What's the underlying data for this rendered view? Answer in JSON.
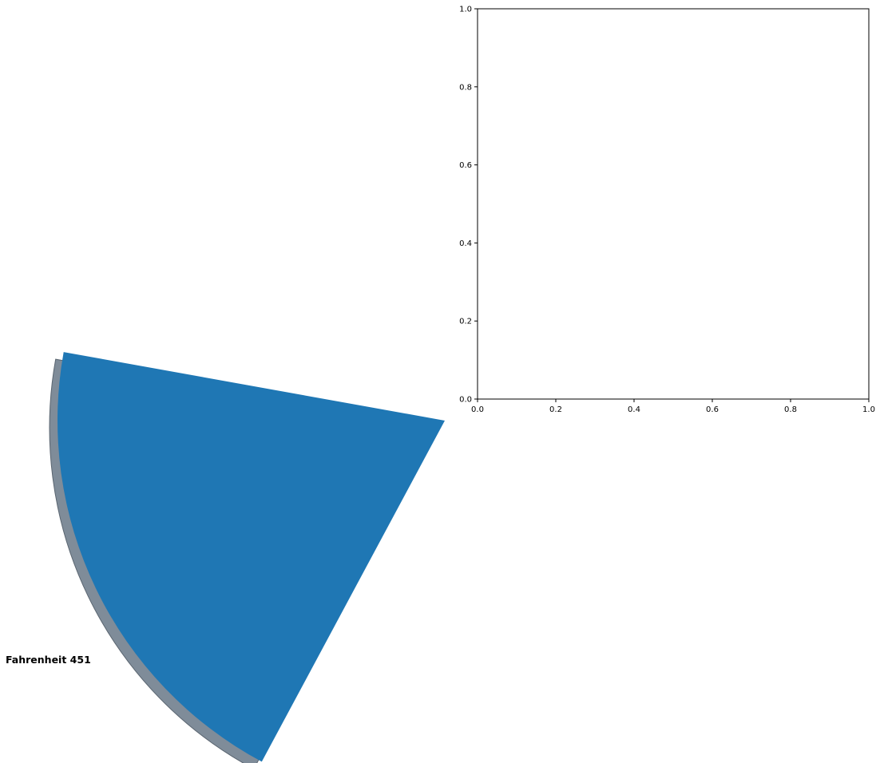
{
  "chart_data": [
    {
      "type": "pie",
      "title": "",
      "slices": [
        {
          "label": "Fahrenheit 451",
          "fraction": 0.2,
          "color": "#1f77b4"
        }
      ],
      "shadow": true,
      "shadow_color": "#7f8c99"
    },
    {
      "type": "scatter",
      "title": "",
      "xlabel": "",
      "ylabel": "",
      "xlim": [
        0,
        1
      ],
      "ylim": [
        0,
        1
      ],
      "xticks": [
        "0.0",
        "0.2",
        "0.4",
        "0.6",
        "0.8",
        "1.0"
      ],
      "yticks": [
        "0.0",
        "0.2",
        "0.4",
        "0.6",
        "0.8",
        "1.0"
      ],
      "series": []
    }
  ]
}
